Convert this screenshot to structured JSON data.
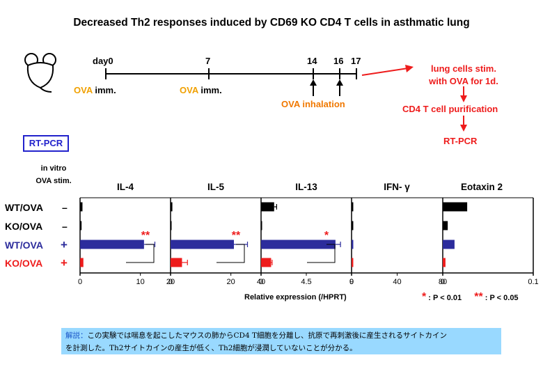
{
  "title": "Decreased Th2 responses induced by CD69 KO CD4 T cells in asthmatic lung",
  "timeline": {
    "days": [
      {
        "label": "day0"
      },
      {
        "label": "7"
      },
      {
        "label": "14"
      },
      {
        "label": "16"
      },
      {
        "label": "17"
      }
    ],
    "imm1": {
      "ova": "OVA",
      "rest": "imm."
    },
    "imm2": {
      "ova": "OVA",
      "rest": "imm."
    },
    "inhalation": "OVA inhalation"
  },
  "flow": {
    "step1_line1": "lung cells stim.",
    "step1_line2": "with OVA for 1d.",
    "step2": "CD4 T cell purification",
    "step3": "RT-PCR"
  },
  "rtpcr_box": "RT-PCR",
  "invitro_line1": "in vitro",
  "invitro_line2": "OVA stim.",
  "rows": [
    {
      "label": "WT/OVA",
      "stim": "–",
      "color": "#000000"
    },
    {
      "label": "KO/OVA",
      "stim": "–",
      "color": "#000000"
    },
    {
      "label": "WT/OVA",
      "stim": "+",
      "color": "#2c2c9c"
    },
    {
      "label": "KO/OVA",
      "stim": "+",
      "color": "#ee1c1c"
    }
  ],
  "panels": [
    {
      "name": "IL-4",
      "ticks": [
        "0",
        "10",
        "20"
      ],
      "max": 15,
      "values": [
        0.4,
        0.25,
        10.6,
        0.55
      ],
      "errors": [
        0.0,
        0.0,
        1.8,
        0.0
      ],
      "sig": "**"
    },
    {
      "name": "IL-5",
      "ticks": [
        "0",
        "20",
        "40"
      ],
      "max": 30,
      "values": [
        0.6,
        0.1,
        21.0,
        3.8
      ],
      "errors": [
        0.0,
        0.0,
        4.5,
        1.8
      ],
      "sig": "**"
    },
    {
      "name": "IL-13",
      "ticks": [
        "0",
        "4.5",
        "9"
      ],
      "max": 9,
      "values": [
        1.3,
        0.06,
        7.4,
        1.0
      ],
      "errors": [
        0.25,
        0.0,
        0.5,
        0.1
      ],
      "sig": "*"
    },
    {
      "name": "IFN- γ",
      "ticks": [
        "0",
        "40",
        "80"
      ],
      "max": 80,
      "values": [
        1.5,
        1.5,
        1.5,
        1.5
      ],
      "errors": [
        0.0,
        0.0,
        0.0,
        0.0
      ],
      "sig": ""
    },
    {
      "name": "Eotaxin 2",
      "ticks": [
        "0",
        "0.1"
      ],
      "max": 0.1,
      "values": [
        0.027,
        0.0055,
        0.013,
        0.003
      ],
      "errors": [
        0.0,
        0.0,
        0.0,
        0.0
      ],
      "sig": ""
    }
  ],
  "xlabel": "Relative expression (/HPRT)",
  "legend": {
    "single_star": "*",
    "single_label": ": P < 0.01",
    "double_star": "**",
    "double_label": ": P < 0.05"
  },
  "note": {
    "head": "解説：",
    "line1": "この実験では喘息を起こしたマウスの肺からCD4 T細胞を分離し、抗原で再刺激後に産生されるサイトカイン",
    "line2": "を計測した。Th2サイトカインの産生が低く、Th2細胞が浸潤していないことが分かる。"
  }
}
